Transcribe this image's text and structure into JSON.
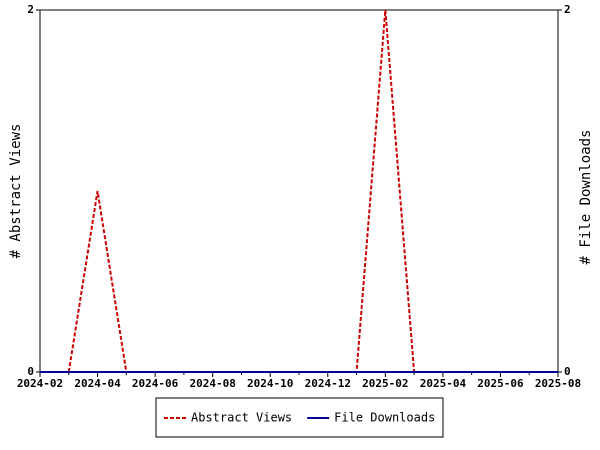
{
  "chart_data": {
    "type": "line",
    "categories": [
      "2024-02",
      null,
      "2024-04",
      null,
      "2024-06",
      null,
      "2024-08",
      null,
      "2024-10",
      null,
      "2024-12",
      null,
      "2025-02",
      null,
      "2025-04",
      null,
      "2025-06",
      null,
      "2025-08"
    ],
    "series": [
      {
        "name": "Abstract Views",
        "color": "#cc0000",
        "dash": true,
        "values": [
          null,
          0,
          1,
          0,
          0,
          0,
          0,
          0,
          0,
          0,
          0,
          0,
          2,
          0,
          0,
          0,
          0,
          0,
          0
        ]
      },
      {
        "name": "File Downloads",
        "color": "#000099",
        "dash": false,
        "axis": "y2",
        "values": [
          0,
          0,
          0,
          0,
          0,
          0,
          0,
          0,
          0,
          0,
          0,
          0,
          0,
          0,
          0,
          0,
          0,
          0,
          0
        ]
      }
    ],
    "ylabel": "# Abstract Views",
    "y2label": "# File Downloads",
    "ylim": [
      0,
      2
    ],
    "yticks": [
      0,
      2
    ],
    "y2lim": [
      0,
      2
    ],
    "y2ticks": [
      0,
      2
    ],
    "legend": "bottom"
  }
}
